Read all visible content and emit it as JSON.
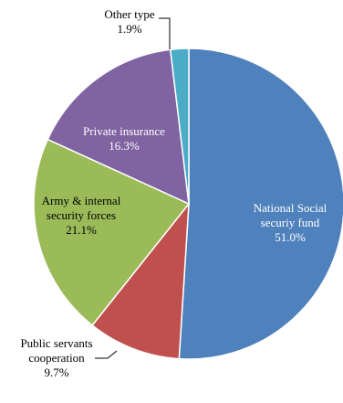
{
  "chart_data": {
    "type": "pie",
    "title": "",
    "slices": [
      {
        "label_lines": [
          "National Social",
          "securiy fund"
        ],
        "pct_label": "51.0%",
        "value": 51.0,
        "color": "#4F81BD",
        "label_color": "#ffffff"
      },
      {
        "label_lines": [
          "Public servants",
          "cooperation"
        ],
        "pct_label": "9.7%",
        "value": 9.7,
        "color": "#C0504D",
        "label_color": "#000000"
      },
      {
        "label_lines": [
          "Army & internal",
          "security forces"
        ],
        "pct_label": "21.1%",
        "value": 21.1,
        "color": "#9BBB59",
        "label_color": "#000000"
      },
      {
        "label_lines": [
          "Private insurance"
        ],
        "pct_label": "16.3%",
        "value": 16.3,
        "color": "#8064A2",
        "label_color": "#ffffff"
      },
      {
        "label_lines": [
          "Other type"
        ],
        "pct_label": "1.9%",
        "value": 1.9,
        "color": "#4BACC6",
        "label_color": "#000000"
      }
    ],
    "legend": "none",
    "start_angle_deg": 0,
    "direction": "clockwise"
  }
}
